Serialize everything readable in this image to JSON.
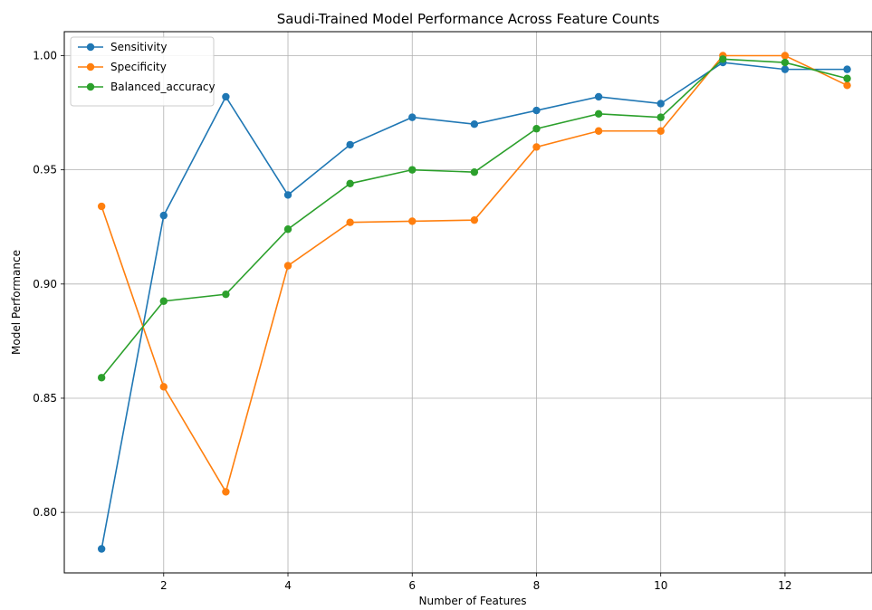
{
  "chart_data": {
    "type": "line",
    "title": "Saudi-Trained Model Performance Across Feature Counts",
    "xlabel": "Number of Features",
    "ylabel": "Model Performance",
    "x": [
      1,
      2,
      3,
      4,
      5,
      6,
      7,
      8,
      9,
      10,
      11,
      12,
      13
    ],
    "xlim": [
      0.4,
      13.4
    ],
    "ylim": [
      0.7735,
      1.0105
    ],
    "xticks": [
      2,
      4,
      6,
      8,
      10,
      12
    ],
    "yticks": [
      0.8,
      0.85,
      0.9,
      0.95,
      1.0
    ],
    "ytick_labels": [
      "0.80",
      "0.85",
      "0.90",
      "0.95",
      "1.00"
    ],
    "grid": true,
    "legend_position": "upper-left",
    "series": [
      {
        "name": "Sensitivity",
        "color": "#1f77b4",
        "values": [
          0.784,
          0.93,
          0.982,
          0.939,
          0.961,
          0.973,
          0.97,
          0.976,
          0.982,
          0.979,
          0.997,
          0.994,
          0.994
        ]
      },
      {
        "name": "Specificity",
        "color": "#ff7f0e",
        "values": [
          0.934,
          0.855,
          0.809,
          0.908,
          0.927,
          0.9275,
          0.928,
          0.96,
          0.967,
          0.967,
          1.0,
          1.0,
          0.987
        ]
      },
      {
        "name": "Balanced_accuracy",
        "color": "#2ca02c",
        "values": [
          0.859,
          0.8925,
          0.8955,
          0.924,
          0.944,
          0.95,
          0.949,
          0.968,
          0.9745,
          0.973,
          0.9985,
          0.997,
          0.99
        ]
      }
    ]
  }
}
